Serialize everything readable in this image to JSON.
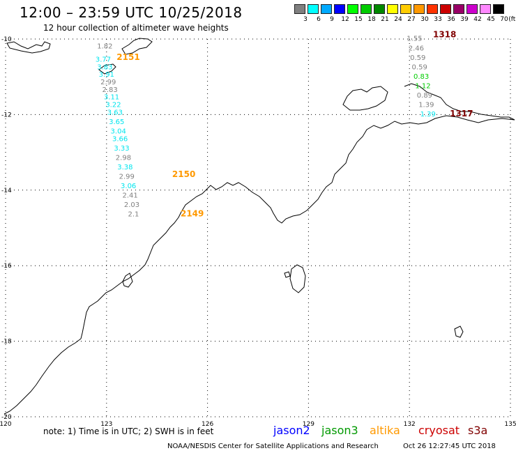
{
  "header": {
    "title": "12:00 – 23:59 UTC 10/25/2018",
    "subtitle": "12 hour collection of altimeter wave heights"
  },
  "color_scale": {
    "labels": [
      "3",
      "6",
      "9",
      "12",
      "15",
      "18",
      "21",
      "24",
      "27",
      "30",
      "33",
      "36",
      "39",
      "42",
      "45",
      "70"
    ],
    "unit": "(ft)",
    "colors": [
      "#808080",
      "#00ffff",
      "#00aaff",
      "#0000ff",
      "#00ff00",
      "#00cc00",
      "#008800",
      "#ffff00",
      "#ffcc00",
      "#ff9900",
      "#ff3300",
      "#cc0000",
      "#990066",
      "#cc00cc",
      "#ff88ff",
      "#000000"
    ]
  },
  "map": {
    "lon_labels": [
      "120",
      "123",
      "126",
      "129",
      "132",
      "135"
    ],
    "lat_labels": [
      "-10",
      "-12",
      "-14",
      "-16",
      "-18",
      "-20"
    ],
    "lon_range": [
      120,
      135
    ],
    "lat_range": [
      -20,
      -10
    ],
    "grid": "dotted"
  },
  "tracks": [
    {
      "id": "2151",
      "color": "#ff9900",
      "label_color": "#ff9900",
      "points": [
        {
          "lon": 122.95,
          "lat": -10.25,
          "swh": "1.82",
          "color": "#808080"
        },
        {
          "lon": 122.9,
          "lat": -10.6,
          "swh": "3.77",
          "color": "#00e5ee"
        },
        {
          "lon": 122.95,
          "lat": -10.8,
          "swh": "3.83",
          "color": "#00e5ee"
        },
        {
          "lon": 123.0,
          "lat": -11.0,
          "swh": "3.91",
          "color": "#00e5ee"
        },
        {
          "lon": 123.05,
          "lat": -11.2,
          "swh": "2.99",
          "color": "#808080"
        },
        {
          "lon": 123.1,
          "lat": -11.4,
          "swh": "2.83",
          "color": "#808080"
        },
        {
          "lon": 123.15,
          "lat": -11.6,
          "swh": "3.11",
          "color": "#00e5ee"
        },
        {
          "lon": 123.2,
          "lat": -11.8,
          "swh": "3.22",
          "color": "#00e5ee"
        },
        {
          "lon": 123.25,
          "lat": -12.0,
          "swh": "3.63",
          "color": "#00e5ee"
        },
        {
          "lon": 123.3,
          "lat": -12.25,
          "swh": "3.65",
          "color": "#00e5ee"
        },
        {
          "lon": 123.35,
          "lat": -12.5,
          "swh": "3.04",
          "color": "#00e5ee"
        },
        {
          "lon": 123.4,
          "lat": -12.7,
          "swh": "3.66",
          "color": "#00e5ee"
        },
        {
          "lon": 123.45,
          "lat": -12.95,
          "swh": "3.33",
          "color": "#00e5ee"
        },
        {
          "lon": 123.5,
          "lat": -13.2,
          "swh": "2.98",
          "color": "#808080"
        },
        {
          "lon": 123.55,
          "lat": -13.45,
          "swh": "3.38",
          "color": "#00e5ee"
        }
      ],
      "label": "2151",
      "label_lon": 123.3,
      "label_lat": -10.55
    },
    {
      "id": "2150",
      "color": "#ff9900",
      "points": [
        {
          "lon": 123.6,
          "lat": -13.7,
          "swh": "2.99",
          "color": "#808080"
        },
        {
          "lon": 123.65,
          "lat": -13.95,
          "swh": "3.06",
          "color": "#00e5ee"
        },
        {
          "lon": 123.7,
          "lat": -14.2,
          "swh": "2.41",
          "color": "#808080"
        },
        {
          "lon": 123.75,
          "lat": -14.45,
          "swh": "2.03",
          "color": "#808080"
        },
        {
          "lon": 123.8,
          "lat": -14.7,
          "swh": "2.1",
          "color": "#808080"
        }
      ],
      "label": "2150",
      "label_lon": 124.95,
      "label_lat": -13.65
    },
    {
      "id": "2149",
      "color": "#ff9900",
      "points": [],
      "label": "2149",
      "label_lon": 125.2,
      "label_lat": -14.7
    },
    {
      "id": "1318",
      "color": "#800000",
      "points": [
        {
          "lon": 132.15,
          "lat": -10.05,
          "swh": "1.55",
          "color": "#808080"
        },
        {
          "lon": 132.2,
          "lat": -10.3,
          "swh": "2.46",
          "color": "#808080"
        },
        {
          "lon": 132.25,
          "lat": -10.55,
          "swh": "0.59",
          "color": "#808080"
        },
        {
          "lon": 132.3,
          "lat": -10.8,
          "swh": "0.59",
          "color": "#808080"
        },
        {
          "lon": 132.35,
          "lat": -11.05,
          "swh": "0.83",
          "color": "#00cc00"
        },
        {
          "lon": 132.4,
          "lat": -11.3,
          "swh": "1.12",
          "color": "#00cc00"
        },
        {
          "lon": 132.45,
          "lat": -11.55,
          "swh": "0.89",
          "color": "#808080"
        },
        {
          "lon": 132.5,
          "lat": -11.8,
          "swh": "1.39",
          "color": "#808080"
        },
        {
          "lon": 132.55,
          "lat": -12.05,
          "swh": "1.39",
          "color": "#00e5ee"
        }
      ],
      "label": "1318",
      "label_lon": 132.7,
      "label_lat": -9.95
    },
    {
      "id": "1317",
      "color": "#800000",
      "points": [],
      "label": "1317",
      "label_lon": 133.2,
      "label_lat": -12.05
    }
  ],
  "footer": {
    "note": "note: 1) Time is in UTC; 2) SWH is in feet",
    "satellites": [
      {
        "name": "jason2",
        "color": "#0000ff"
      },
      {
        "name": "jason3",
        "color": "#009900"
      },
      {
        "name": "altika",
        "color": "#ff9900"
      },
      {
        "name": "cryosat",
        "color": "#cc0000"
      },
      {
        "name": "s3a",
        "color": "#800000"
      }
    ],
    "credit": "NOAA/NESDIS Center for Satellite Applications and Research",
    "timestamp": "Oct 26 12:27:45 UTC 2018"
  }
}
